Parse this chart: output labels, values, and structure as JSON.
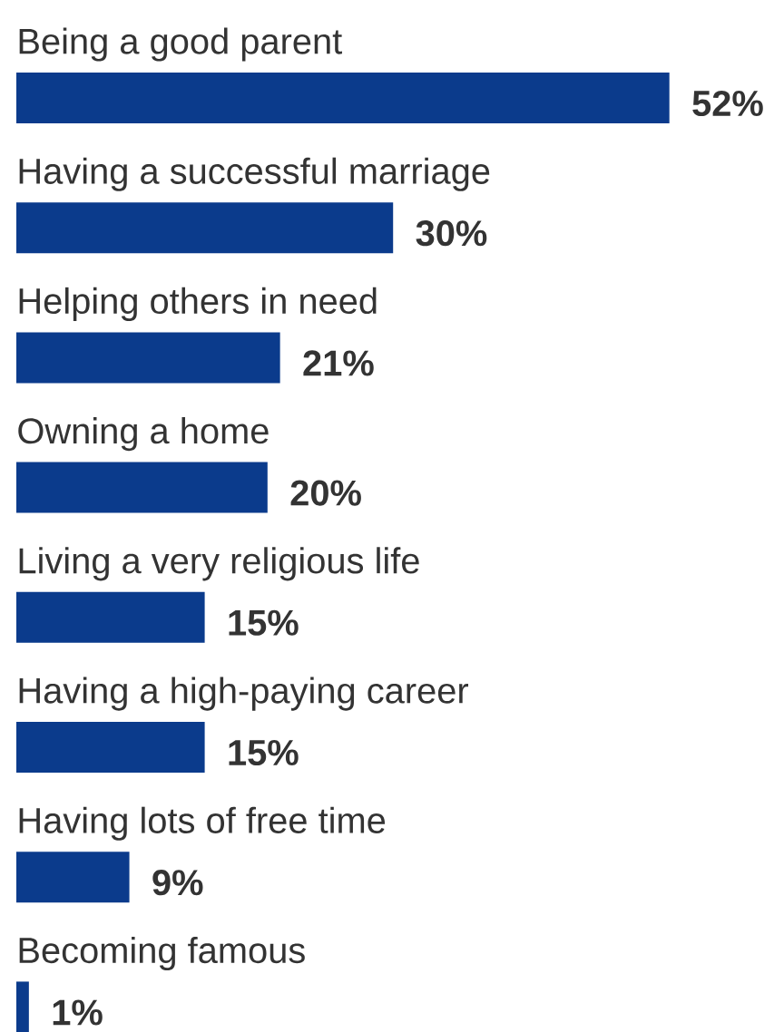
{
  "chart_data": {
    "type": "bar",
    "orientation": "horizontal",
    "categories": [
      "Being a good parent",
      "Having a successful marriage",
      "Helping others in need",
      "Owning a home",
      "Living a very religious life",
      "Having a high-paying career",
      "Having lots of free time",
      "Becoming famous"
    ],
    "values": [
      52,
      30,
      21,
      20,
      15,
      15,
      9,
      1
    ],
    "value_labels": [
      "52%",
      "30%",
      "21%",
      "20%",
      "15%",
      "15%",
      "9%",
      "1%"
    ],
    "color": "#0b3b8c"
  }
}
